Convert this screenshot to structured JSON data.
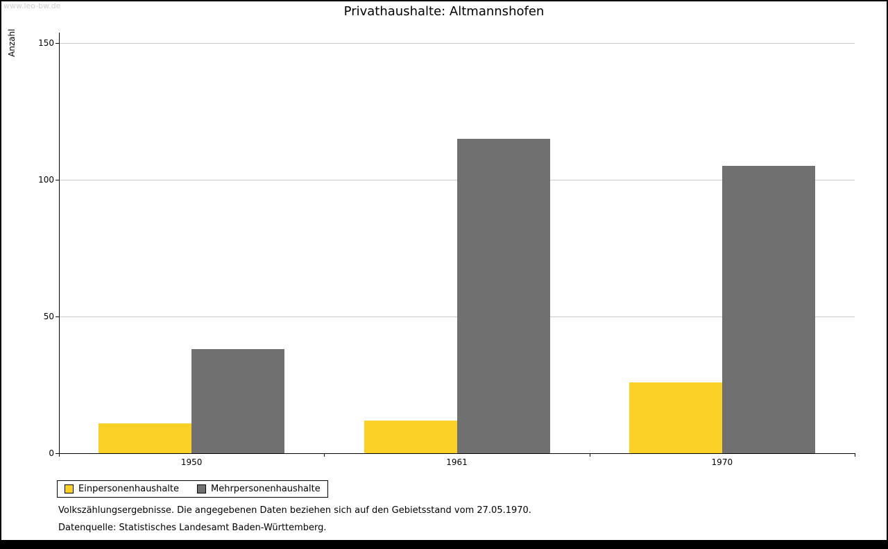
{
  "watermark": "www.leo-bw.de",
  "title": "Privathaushalte: Altmannshofen",
  "ylabel": "Anzahl",
  "footnotes": [
    "Volkszählungsergebnisse. Die angegebenen Daten beziehen sich auf den Gebietsstand vom 27.05.1970.",
    "Datenquelle: Statistisches Landesamt Baden-Württemberg."
  ],
  "chart_data": {
    "type": "bar",
    "title": "Privathaushalte: Altmannshofen",
    "ylabel": "Anzahl",
    "xlabel": "",
    "categories": [
      "1950",
      "1961",
      "1970"
    ],
    "series": [
      {
        "name": "Einpersonenhaushalte",
        "color": "#FBD128",
        "values": [
          11,
          12,
          26
        ]
      },
      {
        "name": "Mehrpersonenhaushalte",
        "color": "#707070",
        "values": [
          38,
          115,
          105
        ]
      }
    ],
    "ylim": [
      0,
      150
    ],
    "yticks": [
      0,
      50,
      100,
      150
    ],
    "grid": true,
    "legend_position": "bottom-left"
  }
}
